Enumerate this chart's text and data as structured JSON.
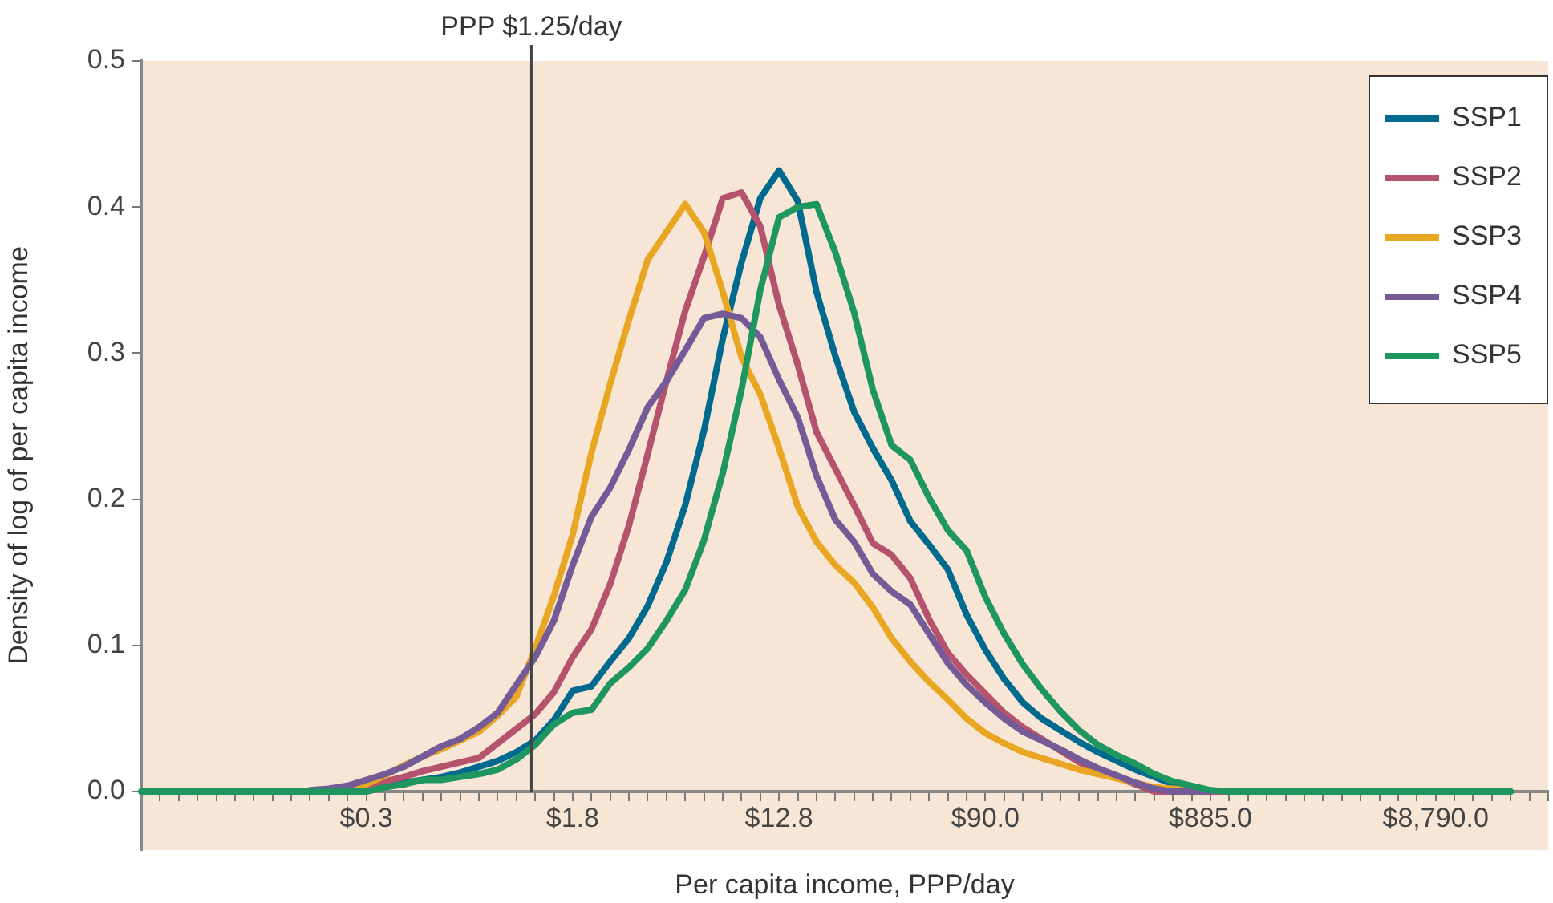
{
  "chart_data": {
    "type": "line",
    "xlabel": "Per capita income, PPP/day",
    "ylabel": "Density of log of per capita income",
    "categories": [
      null,
      null,
      null,
      null,
      null,
      null,
      null,
      null,
      null,
      null,
      null,
      null,
      "$0.3",
      null,
      null,
      null,
      null,
      null,
      null,
      null,
      null,
      null,
      null,
      "$1.8",
      null,
      null,
      null,
      null,
      null,
      null,
      null,
      null,
      null,
      null,
      "$12.8",
      null,
      null,
      null,
      null,
      null,
      null,
      null,
      null,
      null,
      null,
      "$90.0",
      null,
      null,
      null,
      null,
      null,
      null,
      null,
      null,
      null,
      null,
      null,
      "$885.0",
      null,
      null,
      null,
      null,
      null,
      null,
      null,
      null,
      null,
      null,
      null,
      "$8,790.0",
      null,
      null,
      null,
      null,
      null,
      null
    ],
    "ylim": [
      -0.04,
      0.5
    ],
    "yticks": [
      {
        "value": 0,
        "label": "0.0"
      },
      0.1,
      0.2,
      0.3,
      0.4,
      0.5
    ],
    "grid": false,
    "legend": "top right",
    "marker": "none",
    "line_style": "solid",
    "annotations": [
      "PPP $1.25/day"
    ],
    "series": [
      {
        "name": "SSP1",
        "color": "#006a8e",
        "values": [
          null,
          null,
          null,
          null,
          null,
          null,
          null,
          null,
          null,
          null,
          null,
          null,
          0.002,
          0.004,
          0.006,
          0.008,
          0.01,
          0.013,
          0.017,
          0.021,
          0.027,
          0.035,
          0.049,
          0.069,
          0.072,
          0.089,
          0.105,
          0.127,
          0.157,
          0.196,
          0.247,
          0.31,
          0.362,
          0.406,
          0.425,
          0.404,
          0.342,
          0.298,
          0.26,
          0.235,
          0.213,
          0.185,
          0.169,
          0.152,
          0.121,
          0.097,
          0.077,
          0.061,
          0.05,
          0.042,
          0.034,
          0.027,
          0.021,
          0.015,
          0.01,
          0.005,
          0.002,
          0,
          0,
          null,
          null,
          null,
          null,
          null,
          null,
          null,
          null,
          null,
          null,
          null,
          null,
          null,
          null,
          null,
          null,
          null
        ]
      },
      {
        "name": "SSP2",
        "color": "#b5536f",
        "values": [
          null,
          null,
          null,
          null,
          null,
          null,
          null,
          null,
          null,
          0,
          0.001,
          0.002,
          0.003,
          0.007,
          0.01,
          0.014,
          0.017,
          0.02,
          0.023,
          0.033,
          0.043,
          0.053,
          0.068,
          0.092,
          0.111,
          0.142,
          0.182,
          0.231,
          0.281,
          0.329,
          0.366,
          0.406,
          0.41,
          0.387,
          0.333,
          0.292,
          0.246,
          0.221,
          0.196,
          0.17,
          0.162,
          0.146,
          0.118,
          0.095,
          0.08,
          0.067,
          0.054,
          0.044,
          0.036,
          0.028,
          0.02,
          0.015,
          0.01,
          0.005,
          0,
          0,
          0,
          0,
          0,
          null,
          null,
          null,
          null,
          null,
          null,
          null,
          null,
          null,
          null,
          null,
          null,
          null,
          null,
          null,
          null,
          null
        ]
      },
      {
        "name": "SSP3",
        "color": "#e8a623",
        "values": [
          null,
          null,
          null,
          null,
          null,
          null,
          null,
          null,
          null,
          null,
          null,
          0.003,
          0.005,
          0.011,
          0.018,
          0.024,
          0.029,
          0.035,
          0.041,
          0.052,
          0.065,
          0.098,
          0.134,
          0.176,
          0.232,
          0.279,
          0.323,
          0.364,
          0.383,
          0.402,
          0.383,
          0.342,
          0.297,
          0.272,
          0.235,
          0.195,
          0.171,
          0.155,
          0.143,
          0.126,
          0.105,
          0.089,
          0.075,
          0.063,
          0.05,
          0.04,
          0.033,
          0.027,
          0.023,
          0.019,
          0.015,
          0.012,
          0.009,
          0.006,
          0.003,
          0.002,
          0.001,
          null,
          null,
          null,
          null,
          null,
          null,
          null,
          null,
          null,
          null,
          null,
          null,
          null,
          null,
          null,
          null,
          null,
          null,
          null
        ]
      },
      {
        "name": "SSP4",
        "color": "#745a96",
        "values": [
          null,
          null,
          null,
          null,
          null,
          null,
          null,
          null,
          null,
          0.001,
          0.002,
          0.004,
          0.008,
          0.012,
          0.017,
          0.024,
          0.031,
          0.036,
          0.044,
          0.054,
          0.073,
          0.092,
          0.117,
          0.155,
          0.188,
          0.208,
          0.234,
          0.263,
          0.281,
          0.302,
          0.324,
          0.327,
          0.324,
          0.311,
          0.282,
          0.256,
          0.216,
          0.186,
          0.171,
          0.149,
          0.137,
          0.128,
          0.108,
          0.088,
          0.073,
          0.061,
          0.05,
          0.041,
          0.035,
          0.029,
          0.022,
          0.016,
          0.011,
          0.006,
          0.002,
          0,
          0,
          0,
          null,
          null,
          null,
          null,
          null,
          null,
          null,
          null,
          null,
          null,
          null,
          null,
          null,
          null,
          null,
          null,
          null,
          null
        ]
      },
      {
        "name": "SSP5",
        "color": "#1e9660",
        "values": [
          0,
          0,
          0,
          0,
          0,
          0,
          0,
          0,
          0,
          0,
          0,
          0,
          0,
          0.003,
          0.005,
          0.008,
          0.008,
          0.01,
          0.012,
          0.015,
          0.022,
          0.032,
          0.046,
          0.054,
          0.056,
          0.074,
          0.085,
          0.098,
          0.117,
          0.138,
          0.172,
          0.218,
          0.275,
          0.343,
          0.393,
          0.4,
          0.402,
          0.369,
          0.328,
          0.275,
          0.237,
          0.227,
          0.201,
          0.179,
          0.165,
          0.133,
          0.108,
          0.087,
          0.07,
          0.055,
          0.042,
          0.032,
          0.025,
          0.019,
          0.012,
          0.007,
          0.004,
          0.001,
          0,
          0,
          0,
          0,
          0,
          0,
          0,
          0,
          0,
          0,
          0,
          0,
          0,
          0,
          0,
          0,
          null,
          null
        ]
      }
    ]
  }
}
